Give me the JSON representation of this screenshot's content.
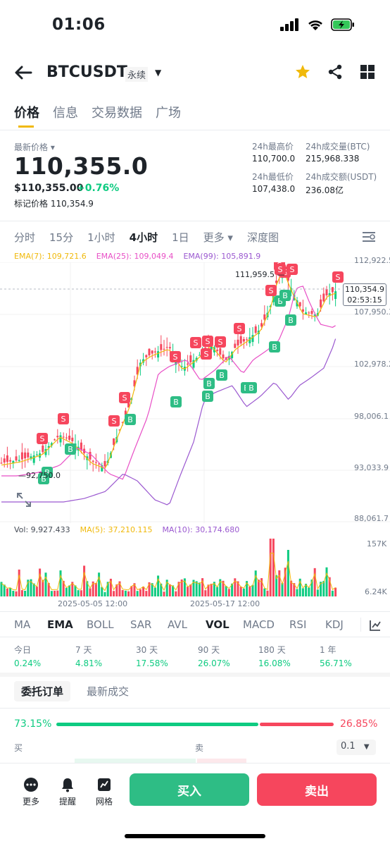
{
  "status_bar": {
    "time": "01:06"
  },
  "header": {
    "pair": "BTCUSDT",
    "contract_type": "永续"
  },
  "top_tabs": [
    "价格",
    "信息",
    "交易数据",
    "广场"
  ],
  "price": {
    "last_price_label": "最新价格",
    "last_price": "110,355.0",
    "usd_value": "$110,355.00",
    "change_pct": "+0.76%",
    "mark_price_label": "标记价格",
    "mark_price": "110,354.9",
    "high_label": "24h最高价",
    "high": "110,700.0",
    "low_label": "24h最低价",
    "low": "107,438.0",
    "vol_btc_label": "24h成交量(BTC)",
    "vol_btc": "215,968.338",
    "vol_usdt_label": "24h成交额(USDT)",
    "vol_usdt": "236.08亿"
  },
  "intervals": [
    "分时",
    "15分",
    "1小时",
    "4小时",
    "1日",
    "更多",
    "深度图"
  ],
  "ema_legend": {
    "ema7": "EMA(7): 109,721.6",
    "ema25": "EMA(25): 109,049.4",
    "ema99": "EMA(99): 105,891.9"
  },
  "colors": {
    "up": "#0ecb81",
    "down": "#f6465d",
    "ema7": "#f0b90b",
    "ema25": "#e84fc6",
    "ema99": "#9b59d0",
    "accent": "#f0b90b"
  },
  "price_axis": [
    "112,922.5",
    "107,950.3",
    "102,978.2",
    "98,006.1",
    "93,033.9",
    "88,061.7"
  ],
  "chart_annotations": {
    "high_marker": "111,959.5",
    "low_marker": "92,750.0",
    "current_price_tag": "110,354.9",
    "countdown": "02:53:15"
  },
  "volume": {
    "vol_label": "Vol: 9,927.433",
    "ma5_label": "MA(5): 37,210.115",
    "ma10_label": "MA(10): 30,174.680",
    "axis_top": "157K",
    "axis_bottom": "6.24K"
  },
  "time_axis": [
    "2025-05-05 12:00",
    "2025-05-17 12:00"
  ],
  "indicator_tabs": [
    "MA",
    "EMA",
    "BOLL",
    "SAR",
    "AVL",
    "VOL",
    "MACD",
    "RSI",
    "KDJ"
  ],
  "performance": [
    {
      "period": "今日",
      "value": "0.24%"
    },
    {
      "period": "7 天",
      "value": "4.81%"
    },
    {
      "period": "30 天",
      "value": "17.58%"
    },
    {
      "period": "90 天",
      "value": "26.07%"
    },
    {
      "period": "180 天",
      "value": "16.08%"
    },
    {
      "period": "1 年",
      "value": "56.71%"
    }
  ],
  "orderbook": {
    "tab_orders": "委托订单",
    "tab_trades": "最新成交",
    "buy_pct": "73.15%",
    "sell_pct": "26.85%",
    "buy_label": "买",
    "sell_label": "卖",
    "precision": "0.1"
  },
  "bottom_nav": {
    "more": "更多",
    "alert": "提醒",
    "grid": "网格",
    "buy": "买入",
    "sell": "卖出"
  }
}
